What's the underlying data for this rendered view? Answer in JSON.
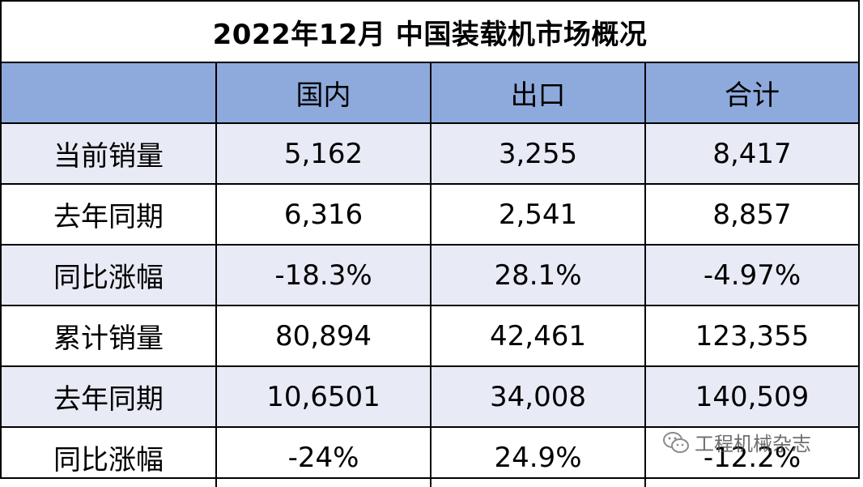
{
  "title": "2022年12月 中国装载机市场概况",
  "columns": [
    "",
    "国内",
    "出口",
    "合计"
  ],
  "rows": [
    {
      "label": "当前销量",
      "domestic": "5,162",
      "export": "3,255",
      "total": "8,417"
    },
    {
      "label": "去年同期",
      "domestic": "6,316",
      "export": "2,541",
      "total": "8,857"
    },
    {
      "label": "同比涨幅",
      "domestic": "-18.3%",
      "export": "28.1%",
      "total": "-4.97%"
    },
    {
      "label": "累计销量",
      "domestic": "80,894",
      "export": "42,461",
      "total": "123,355"
    },
    {
      "label": "去年同期",
      "domestic": "10,6501",
      "export": "34,008",
      "total": "140,509"
    },
    {
      "label": "同比涨幅",
      "domestic": "-24%",
      "export": "24.9%",
      "total": "-12.2%"
    }
  ],
  "watermark": {
    "text": "工程机械杂志",
    "icon": "wechat-icon"
  },
  "colors": {
    "header_bg": "#8eaadc",
    "band_bg": "#e8ebf6",
    "border": "#000000"
  }
}
